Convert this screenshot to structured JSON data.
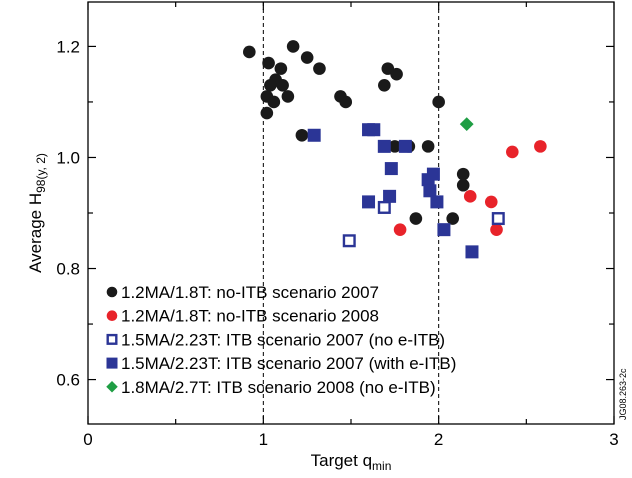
{
  "chart_data": {
    "type": "scatter",
    "xlabel": "Target q",
    "xlabel_sub": "min",
    "ylabel": "Average H",
    "ylabel_sub": "98(y, 2)",
    "xlim": [
      0,
      3
    ],
    "ylim": [
      0.52,
      1.28
    ],
    "x_ticks": [
      0,
      1,
      2,
      3
    ],
    "x_tick_labels": [
      "0",
      "1",
      "2",
      "3"
    ],
    "y_ticks": [
      0.6,
      0.8,
      1.0,
      1.2
    ],
    "y_tick_labels": [
      "0.6",
      "0.8",
      "1.0",
      "1.2"
    ],
    "reference_lines_x": [
      1,
      2
    ],
    "legend_position": "bottom-left",
    "side_note": "JG08.263-2c",
    "series": [
      {
        "name": "1.2MA/1.8T: no-ITB scenario 2007",
        "marker": "circle",
        "filled": true,
        "color": "#1a1a1a",
        "points": [
          [
            0.92,
            1.19
          ],
          [
            1.03,
            1.17
          ],
          [
            1.1,
            1.16
          ],
          [
            1.07,
            1.14
          ],
          [
            1.17,
            1.2
          ],
          [
            1.25,
            1.18
          ],
          [
            1.32,
            1.16
          ],
          [
            1.04,
            1.13
          ],
          [
            1.11,
            1.13
          ],
          [
            1.02,
            1.11
          ],
          [
            1.06,
            1.1
          ],
          [
            1.14,
            1.11
          ],
          [
            1.02,
            1.08
          ],
          [
            1.44,
            1.11
          ],
          [
            1.47,
            1.1
          ],
          [
            1.71,
            1.16
          ],
          [
            1.76,
            1.15
          ],
          [
            1.69,
            1.13
          ],
          [
            1.22,
            1.04
          ],
          [
            1.75,
            1.02
          ],
          [
            1.83,
            1.02
          ],
          [
            1.94,
            1.02
          ],
          [
            2.0,
            1.1
          ],
          [
            2.14,
            0.97
          ],
          [
            2.14,
            0.95
          ],
          [
            1.87,
            0.89
          ],
          [
            2.08,
            0.89
          ]
        ]
      },
      {
        "name": "1.2MA/1.8T: no-ITB scenario 2008",
        "marker": "circle",
        "filled": true,
        "color": "#e8232a",
        "points": [
          [
            2.58,
            1.02
          ],
          [
            2.42,
            1.01
          ],
          [
            2.18,
            0.93
          ],
          [
            2.3,
            0.92
          ],
          [
            1.78,
            0.87
          ],
          [
            2.33,
            0.87
          ]
        ]
      },
      {
        "name": "1.5MA/2.23T: ITB scenario 2007 (no e-ITB)",
        "marker": "square",
        "filled": false,
        "color": "#2b3596",
        "points": [
          [
            1.49,
            0.85
          ],
          [
            1.69,
            0.91
          ],
          [
            2.34,
            0.89
          ]
        ]
      },
      {
        "name": "1.5MA/2.23T: ITB scenario 2007 (with e-ITB)",
        "marker": "square",
        "filled": true,
        "color": "#2b3596",
        "points": [
          [
            1.29,
            1.04
          ],
          [
            1.6,
            1.05
          ],
          [
            1.63,
            1.05
          ],
          [
            1.69,
            1.02
          ],
          [
            1.81,
            1.02
          ],
          [
            1.73,
            0.98
          ],
          [
            1.94,
            0.96
          ],
          [
            1.97,
            0.97
          ],
          [
            1.95,
            0.94
          ],
          [
            1.6,
            0.92
          ],
          [
            1.72,
            0.93
          ],
          [
            1.99,
            0.92
          ],
          [
            2.03,
            0.87
          ],
          [
            2.19,
            0.83
          ]
        ]
      },
      {
        "name": "1.8MA/2.7T: ITB scenario 2008 (no e-ITB)",
        "marker": "diamond",
        "filled": true,
        "color": "#1f9e44",
        "points": [
          [
            2.16,
            1.06
          ]
        ]
      }
    ]
  }
}
